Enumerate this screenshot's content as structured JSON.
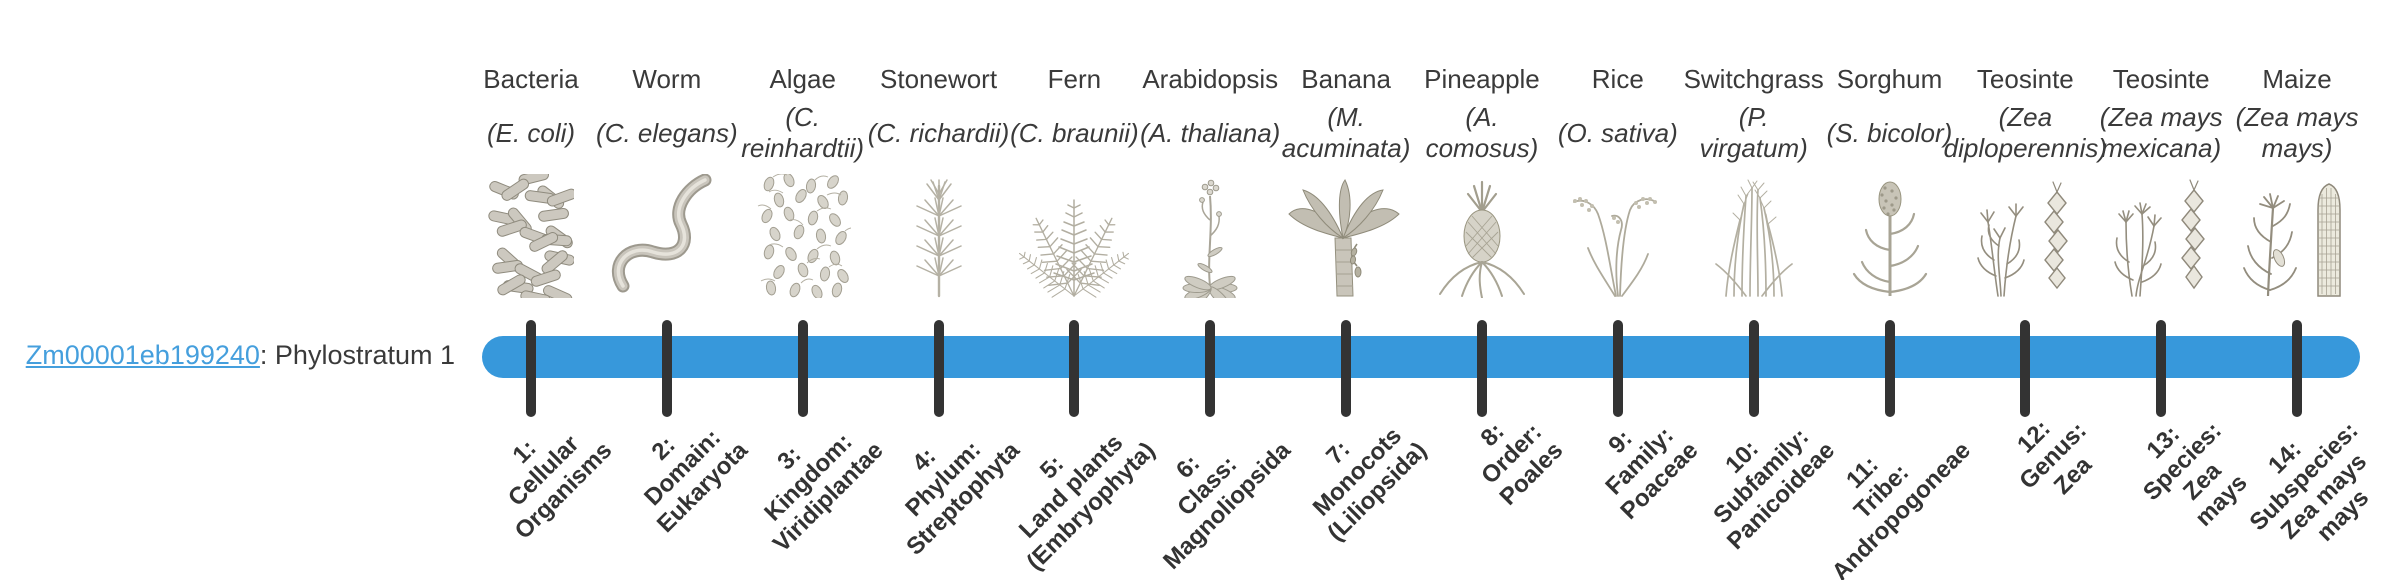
{
  "gene": {
    "id": "Zm00001eb199240",
    "stratum_suffix": ": Phylostratum 1"
  },
  "timeline": {
    "bar_color": "#3798db",
    "tick_color": "#333333",
    "link_color": "#459fdd",
    "text_color": "#3a3a3a"
  },
  "organisms": [
    {
      "common_name": "Bacteria",
      "scientific_name": "(E. coli)",
      "icon": "bacteria-illustration",
      "stratum_label": "1:\nCellular\nOrganisms"
    },
    {
      "common_name": "Worm",
      "scientific_name": "(C. elegans)",
      "icon": "worm-illustration",
      "stratum_label": "2:\nDomain:\nEukaryota"
    },
    {
      "common_name": "Algae",
      "scientific_name": "(C.\nreinhardtii)",
      "icon": "algae-illustration",
      "stratum_label": "3:\nKingdom:\nViridiplantae"
    },
    {
      "common_name": "Stonewort",
      "scientific_name": "(C. richardii)",
      "icon": "stonewort-illustration",
      "stratum_label": "4:\nPhylum:\nStreptophyta"
    },
    {
      "common_name": "Fern",
      "scientific_name": "(C. braunii)",
      "icon": "fern-illustration",
      "stratum_label": "5:\nLand plants\n(Embryophyta)"
    },
    {
      "common_name": "Arabidopsis",
      "scientific_name": "(A. thaliana)",
      "icon": "arabidopsis-illustration",
      "stratum_label": "6:\nClass:\nMagnoliopsida"
    },
    {
      "common_name": "Banana",
      "scientific_name": "(M.\nacuminata)",
      "icon": "banana-illustration",
      "stratum_label": "7:\nMonocots\n(Liliopsida)"
    },
    {
      "common_name": "Pineapple",
      "scientific_name": "(A.\ncomosus)",
      "icon": "pineapple-illustration",
      "stratum_label": "8:\nOrder:\nPoales"
    },
    {
      "common_name": "Rice",
      "scientific_name": "(O. sativa)",
      "icon": "rice-illustration",
      "stratum_label": "9:\nFamily:\nPoaceae"
    },
    {
      "common_name": "Switchgrass",
      "scientific_name": "(P.\nvirgatum)",
      "icon": "switchgrass-illustration",
      "stratum_label": "10:\nSubfamily:\nPanicoideae"
    },
    {
      "common_name": "Sorghum",
      "scientific_name": "(S. bicolor)",
      "icon": "sorghum-illustration",
      "stratum_label": "11:\nTribe:\nAndropogoneae"
    },
    {
      "common_name": "Teosinte",
      "scientific_name": "(Zea\ndiploperennis)",
      "icon": "teosinte-diploperennis-illustration",
      "stratum_label": "12:\nGenus:\nZea"
    },
    {
      "common_name": "Teosinte",
      "scientific_name": "(Zea mays\nmexicana)",
      "icon": "teosinte-mexicana-illustration",
      "stratum_label": "13:\nSpecies:\nZea\nmays"
    },
    {
      "common_name": "Maize",
      "scientific_name": "(Zea mays\nmays)",
      "icon": "maize-illustration",
      "stratum_label": "14:\nSubspecies:\nZea mays\nmays"
    }
  ]
}
